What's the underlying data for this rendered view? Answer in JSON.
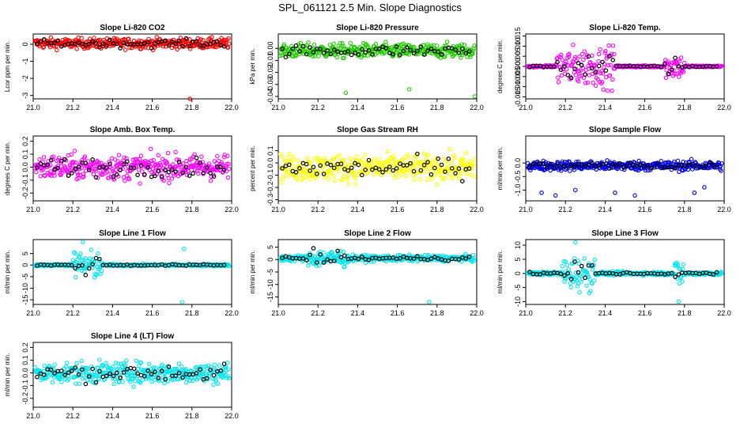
{
  "page": {
    "title": "SPL_061121  2.5 Min. Slope Diagnostics"
  },
  "chart_data": [
    {
      "type": "scatter",
      "title": "Slope Li-820 CO2",
      "ylabel": "Lcor ppm per min.",
      "xlim": [
        21.0,
        22.0
      ],
      "ylim": [
        -3.2,
        0.6
      ],
      "yticks": [
        0,
        -1,
        -2,
        -3
      ],
      "xticks": [
        21.0,
        21.2,
        21.4,
        21.6,
        21.8,
        22.0
      ],
      "xtick_labels": [
        "21.0",
        "21.2",
        "21.4",
        "21.6",
        "21.8",
        "22.0"
      ],
      "ytick_labels": [
        "0",
        "-1",
        "-2",
        "-3"
      ],
      "color": "#ff0000",
      "center": 0.05,
      "spread": 0.25,
      "outliers": [
        [
          21.79,
          -3.2
        ]
      ],
      "burst": null
    },
    {
      "type": "scatter",
      "title": "Slope Li-820 Pressure",
      "ylabel": "kPa per min.",
      "xlim": [
        21.0,
        22.0
      ],
      "ylim": [
        -0.042,
        0.012
      ],
      "yticks": [
        0.0,
        -0.01,
        -0.02,
        -0.03,
        -0.04
      ],
      "xticks": [
        21.0,
        21.2,
        21.4,
        21.6,
        21.8,
        22.0
      ],
      "xtick_labels": [
        "21.0",
        "21.2",
        "21.4",
        "21.6",
        "21.8",
        "22.0"
      ],
      "ytick_labels": [
        "0.00",
        "-0.01",
        "-0.02",
        "-0.03",
        "-0.04"
      ],
      "color": "#22cc00",
      "center": -0.002,
      "spread": 0.005,
      "outliers": [
        [
          21.34,
          -0.037
        ],
        [
          21.66,
          -0.034
        ],
        [
          21.99,
          -0.04
        ]
      ],
      "burst": null
    },
    {
      "type": "scatter",
      "title": "Slope Li-820 Temp.",
      "ylabel": "degrees C per min.",
      "xlim": [
        21.0,
        22.0
      ],
      "ylim": [
        -0.016,
        0.016
      ],
      "yticks": [
        0.015,
        0.01,
        0.005,
        0.0,
        -0.005,
        -0.01,
        -0.015
      ],
      "xticks": [
        21.0,
        21.2,
        21.4,
        21.6,
        21.8,
        22.0
      ],
      "xtick_labels": [
        "21.0",
        "21.2",
        "21.4",
        "21.6",
        "21.8",
        "22.0"
      ],
      "ytick_labels": [
        "0.015",
        "0.010",
        "0.005",
        "0.000",
        "-0.005",
        "-0.010",
        "-0.015"
      ],
      "color": "#ff00ff",
      "center": 0.0,
      "spread": 0.0004,
      "outliers": [],
      "burst": [
        [
          21.15,
          21.45,
          0.008
        ],
        [
          21.7,
          21.8,
          0.005
        ]
      ]
    },
    {
      "type": "scatter",
      "title": "Slope Amb. Box Temp.",
      "ylabel": "degrees C per min.",
      "xlim": [
        21.0,
        22.0
      ],
      "ylim": [
        -0.26,
        0.24
      ],
      "yticks": [
        0.2,
        0.1,
        0.0,
        -0.1,
        -0.2
      ],
      "xticks": [
        21.0,
        21.2,
        21.4,
        21.6,
        21.8,
        22.0
      ],
      "xtick_labels": [
        "21.0",
        "21.2",
        "21.4",
        "21.6",
        "21.8",
        "22.0"
      ],
      "ytick_labels": [
        "0.2",
        "0.1",
        "0.0",
        "-0.1",
        "-0.2"
      ],
      "color": "#ff00ff",
      "center": 0.0,
      "spread": 0.08,
      "outliers": [],
      "burst": null
    },
    {
      "type": "scatter",
      "title": "Slope Gas Stream RH",
      "ylabel": "percent per min.",
      "xlim": [
        21.0,
        22.0
      ],
      "ylim": [
        -0.31,
        0.22
      ],
      "yticks": [
        0.1,
        0.0,
        -0.1,
        -0.2,
        -0.3
      ],
      "xticks": [
        21.0,
        21.2,
        21.4,
        21.6,
        21.8,
        22.0
      ],
      "xtick_labels": [
        "21.0",
        "21.2",
        "21.4",
        "21.6",
        "21.8",
        "22.0"
      ],
      "ytick_labels": [
        "0.1",
        "0.0",
        "-0.1",
        "-0.2",
        "-0.3"
      ],
      "color": "#ffff00",
      "center": -0.04,
      "spread": 0.09,
      "outliers": [],
      "burst": null
    },
    {
      "type": "scatter",
      "title": "Slope Sample Flow",
      "ylabel": "ml/min per min.",
      "xlim": [
        21.0,
        22.0
      ],
      "ylim": [
        -1.4,
        1.0
      ],
      "yticks": [
        0.0,
        -0.5,
        -1.0
      ],
      "xticks": [
        21.0,
        21.2,
        21.4,
        21.6,
        21.8,
        22.0
      ],
      "xtick_labels": [
        "21.0",
        "21.2",
        "21.4",
        "21.6",
        "21.8",
        "22.0"
      ],
      "ytick_labels": [
        "0.0",
        "-0.5",
        "-1.0"
      ],
      "color": "#0000ee",
      "center": -0.1,
      "spread": 0.15,
      "outliers": [
        [
          21.08,
          -1.1
        ],
        [
          21.15,
          -1.2
        ],
        [
          21.25,
          -1.0
        ],
        [
          21.45,
          -1.1
        ],
        [
          21.55,
          -1.2
        ],
        [
          21.85,
          -1.1
        ],
        [
          21.9,
          -0.9
        ]
      ],
      "burst": null
    },
    {
      "type": "scatter",
      "title": "Slope Line 1 Flow",
      "ylabel": "ml/min per min.",
      "xlim": [
        21.0,
        22.0
      ],
      "ylim": [
        -17,
        11
      ],
      "yticks": [
        5,
        0,
        -5,
        -10,
        -15
      ],
      "xticks": [
        21.0,
        21.2,
        21.4,
        21.6,
        21.8,
        22.0
      ],
      "xtick_labels": [
        "21.0",
        "21.2",
        "21.4",
        "21.6",
        "21.8",
        "22.0"
      ],
      "ytick_labels": [
        "5",
        "0",
        "-5",
        "-10",
        "-15"
      ],
      "color": "#00e5ee",
      "center": 0.0,
      "spread": 0.4,
      "outliers": [
        [
          21.25,
          10
        ],
        [
          21.75,
          -16
        ],
        [
          21.76,
          7
        ]
      ],
      "burst": [
        [
          21.2,
          21.35,
          5
        ]
      ]
    },
    {
      "type": "scatter",
      "title": "Slope Line 2 Flow",
      "ylabel": "ml/min per min.",
      "xlim": [
        21.0,
        22.0
      ],
      "ylim": [
        -18,
        8
      ],
      "yticks": [
        5,
        0,
        -5,
        -10,
        -15
      ],
      "xticks": [
        21.0,
        21.2,
        21.4,
        21.6,
        21.8,
        22.0
      ],
      "xtick_labels": [
        "21.0",
        "21.2",
        "21.4",
        "21.6",
        "21.8",
        "22.0"
      ],
      "ytick_labels": [
        "5",
        "0",
        "-5",
        "-10",
        "-15"
      ],
      "color": "#00e5ee",
      "center": 0.5,
      "spread": 1.0,
      "outliers": [
        [
          21.76,
          -17
        ]
      ],
      "burst": [
        [
          21.15,
          21.35,
          3
        ]
      ]
    },
    {
      "type": "scatter",
      "title": "Slope Line 3 Flow",
      "ylabel": "ml/min per min.",
      "xlim": [
        21.0,
        22.0
      ],
      "ylim": [
        -11,
        12
      ],
      "yticks": [
        10,
        5,
        0,
        -5,
        -10
      ],
      "xticks": [
        21.0,
        21.2,
        21.4,
        21.6,
        21.8,
        22.0
      ],
      "xtick_labels": [
        "21.0",
        "21.2",
        "21.4",
        "21.6",
        "21.8",
        "22.0"
      ],
      "ytick_labels": [
        "10",
        "5",
        "0",
        "-5",
        "-10"
      ],
      "color": "#00e5ee",
      "center": 0.0,
      "spread": 0.5,
      "outliers": [
        [
          21.77,
          -10
        ],
        [
          21.25,
          11
        ]
      ],
      "burst": [
        [
          21.18,
          21.35,
          5
        ],
        [
          21.75,
          21.8,
          4
        ]
      ]
    },
    {
      "type": "scatter",
      "title": "Slope Line 4 (LT) Flow",
      "ylabel": "ml/min per min.",
      "xlim": [
        21.0,
        22.0
      ],
      "ylim": [
        -0.27,
        0.24
      ],
      "yticks": [
        0.2,
        0.1,
        0.0,
        -0.1,
        -0.2
      ],
      "xticks": [
        21.0,
        21.2,
        21.4,
        21.6,
        21.8,
        22.0
      ],
      "xtick_labels": [
        "21.0",
        "21.2",
        "21.4",
        "21.6",
        "21.8",
        "22.0"
      ],
      "ytick_labels": [
        "0.2",
        "0.1",
        "0.0",
        "-0.1",
        "-0.2"
      ],
      "color": "#00e5ee",
      "center": 0.0,
      "spread": 0.07,
      "outliers": [],
      "burst": null
    }
  ]
}
